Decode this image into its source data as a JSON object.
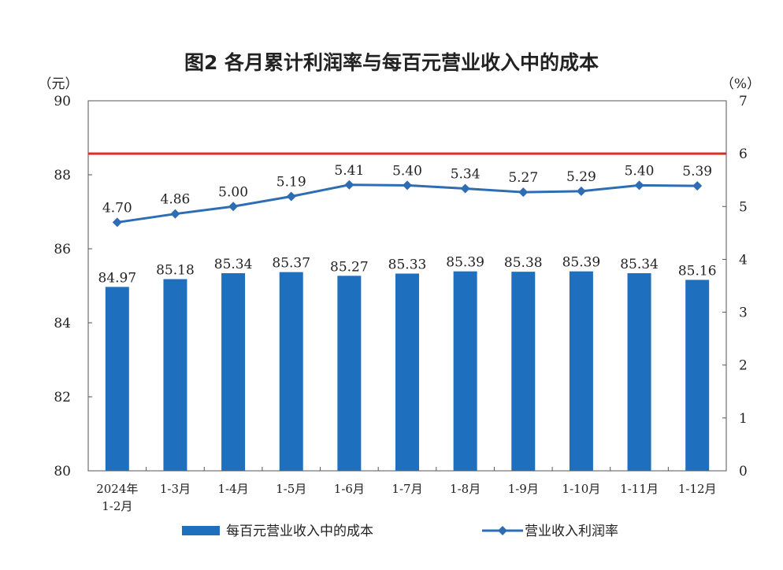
{
  "chart_data": {
    "type": "bar+line",
    "title": "图2  各月累计利润率与每百元营业收入中的成本",
    "left_axis": {
      "unit": "（元）",
      "range": [
        80,
        90
      ],
      "ticks": [
        80,
        82,
        84,
        86,
        88,
        90
      ]
    },
    "right_axis": {
      "unit": "（%）",
      "range": [
        0,
        7
      ],
      "ticks": [
        0,
        1,
        2,
        3,
        4,
        5,
        6,
        7
      ]
    },
    "categories": [
      [
        "2024年",
        "1-2月"
      ],
      [
        "1-3月"
      ],
      [
        "1-4月"
      ],
      [
        "1-5月"
      ],
      [
        "1-6月"
      ],
      [
        "1-7月"
      ],
      [
        "1-8月"
      ],
      [
        "1-9月"
      ],
      [
        "1-10月"
      ],
      [
        "1-11月"
      ],
      [
        "1-12月"
      ]
    ],
    "series": [
      {
        "name": "每百元营业收入中的成本",
        "type": "bar",
        "axis": "left",
        "color": "#1f6fbf",
        "values": [
          84.97,
          85.18,
          85.34,
          85.37,
          85.27,
          85.33,
          85.39,
          85.38,
          85.39,
          85.34,
          85.16
        ],
        "labels": [
          "84.97",
          "85.18",
          "85.34",
          "85.37",
          "85.27",
          "85.33",
          "85.39",
          "85.38",
          "85.39",
          "85.34",
          "85.16"
        ]
      },
      {
        "name": "营业收入利润率",
        "type": "line",
        "axis": "right",
        "color": "#2e6db4",
        "values": [
          4.7,
          4.86,
          5.0,
          5.19,
          5.41,
          5.4,
          5.34,
          5.27,
          5.29,
          5.4,
          5.39
        ],
        "labels": [
          "4.70",
          "4.86",
          "5.00",
          "5.19",
          "5.41",
          "5.40",
          "5.34",
          "5.27",
          "5.29",
          "5.40",
          "5.39"
        ]
      }
    ],
    "reference_line": {
      "axis": "right",
      "value": 6,
      "color": "#d9302a"
    },
    "legend_position": "bottom-center",
    "grid": false
  }
}
